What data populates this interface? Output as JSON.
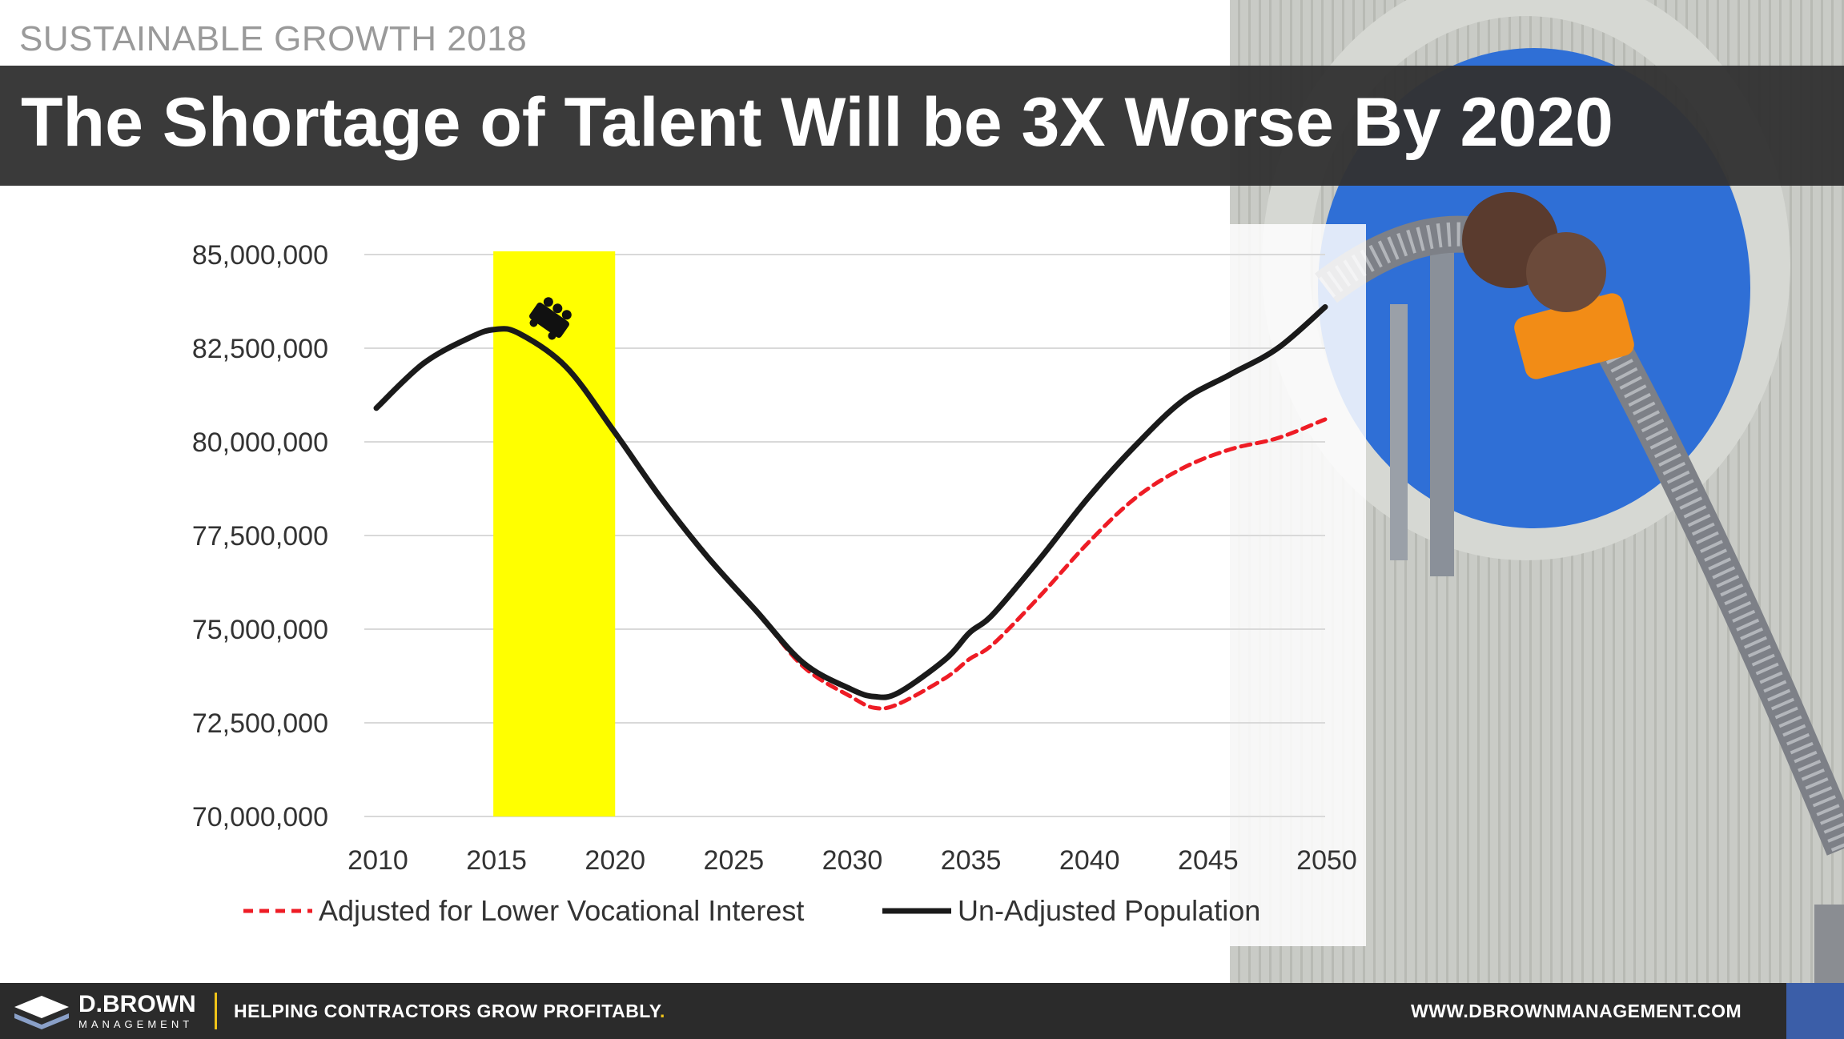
{
  "header": {
    "supertitle": "SUSTAINABLE GROWTH 2018",
    "title": "The Shortage of Talent Will be 3X Worse By 2020"
  },
  "footer": {
    "brand_name": "D.BROWN",
    "brand_sub": "MANAGEMENT",
    "tagline": "HELPING CONTRACTORS GROW PROFITABLY",
    "tagline_suffix": ".",
    "website": "WWW.DBROWNMANAGEMENT.COM"
  },
  "colors": {
    "highlight": "#ffff00",
    "adjusted_series": "#ee1c25",
    "unadjusted_series": "#1a1a1a",
    "footer_bg": "#2b2b2b",
    "footer_accent": "#3b5ea8",
    "brand_yellow": "#f0c419"
  },
  "icons": [
    "roller-coaster-car-icon",
    "logo-icon"
  ],
  "chart_data": {
    "type": "line",
    "x": [
      2010,
      2012,
      2014,
      2015,
      2016,
      2018,
      2020,
      2022,
      2024,
      2026,
      2028,
      2030,
      2031,
      2032,
      2034,
      2035,
      2036,
      2038,
      2040,
      2042,
      2044,
      2046,
      2048,
      2050
    ],
    "xticks": [
      "2010",
      "2015",
      "2020",
      "2025",
      "2030",
      "2035",
      "2040",
      "2045",
      "2050"
    ],
    "yticks": [
      "85,000,000",
      "82,500,000",
      "80,000,000",
      "77,500,000",
      "75,000,000",
      "72,500,000",
      "70,000,000"
    ],
    "xlim": [
      2010,
      2050
    ],
    "ylim": [
      70000000,
      85000000
    ],
    "highlight_range": [
      2015,
      2020
    ],
    "grid": true,
    "legend_position": "bottom",
    "series": [
      {
        "name": "Adjusted for Lower Vocational Interest",
        "style": "dashed",
        "values": [
          80900000,
          82100000,
          82800000,
          83000000,
          82900000,
          82000000,
          80300000,
          78500000,
          76900000,
          75500000,
          74000000,
          73200000,
          72900000,
          73000000,
          73700000,
          74200000,
          74600000,
          75900000,
          77300000,
          78500000,
          79300000,
          79800000,
          80100000,
          80600000
        ]
      },
      {
        "name": "Un-Adjusted Population",
        "style": "solid",
        "values": [
          80900000,
          82100000,
          82800000,
          83000000,
          82900000,
          82000000,
          80300000,
          78500000,
          76900000,
          75500000,
          74100000,
          73400000,
          73200000,
          73300000,
          74200000,
          74900000,
          75400000,
          76900000,
          78500000,
          79900000,
          81100000,
          81800000,
          82500000,
          83600000
        ]
      }
    ]
  }
}
